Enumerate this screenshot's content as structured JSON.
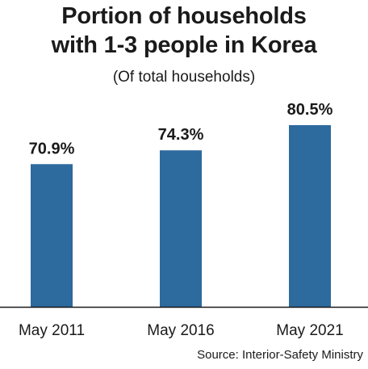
{
  "title_line1": "Portion of households",
  "title_line2": "with 1-3 people in Korea",
  "subtitle": "(Of total households)",
  "source": "Source: Interior-Safety Ministry",
  "colors": {
    "bar": "#2d6a9e",
    "axis": "#1a1a1a",
    "text": "#1a1a1a"
  },
  "chart_data": {
    "type": "bar",
    "categories": [
      "May 2011",
      "May 2016",
      "May 2021"
    ],
    "values": [
      70.9,
      74.3,
      80.5
    ],
    "value_labels": [
      "70.9%",
      "74.3%",
      "80.5%"
    ],
    "title": "Portion of households with 1-3 people in Korea",
    "subtitle": "(Of total households)",
    "xlabel": "",
    "ylabel": "",
    "y_unit": "%",
    "grid": false
  }
}
